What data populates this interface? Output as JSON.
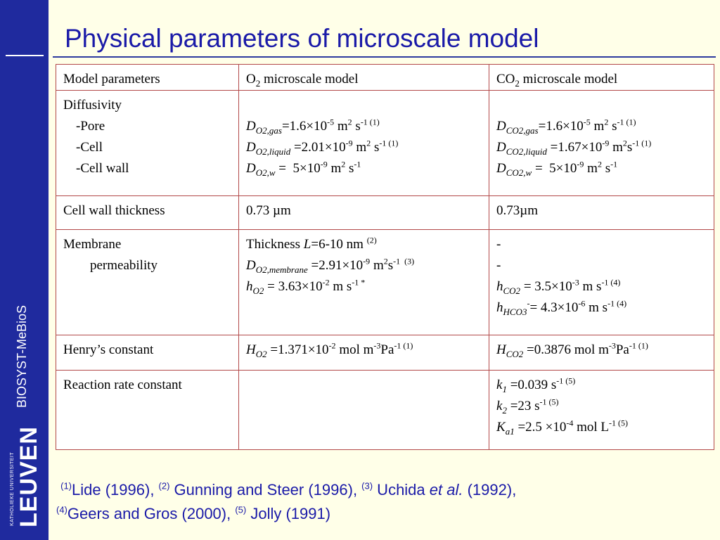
{
  "sidebar": {
    "brand": "BIOSYST-MeBioS",
    "university": "KATHOLIEKE UNIVERSITEIT",
    "logo": "LEUVEN"
  },
  "title": "Physical parameters of microscale model",
  "table": {
    "header": {
      "col1": "Model parameters",
      "col2_main": "O",
      "col2_sub": "2",
      "col2_rest": " microscale model",
      "col3_main": "CO",
      "col3_sub": "2",
      "col3_rest": " microscale model"
    },
    "rows": {
      "diffusivity": {
        "label": "Diffusivity",
        "pore": "-Pore",
        "cell": "-Cell",
        "cell_wall": "-Cell wall"
      },
      "cell_wall_thickness": {
        "label": "Cell wall thickness",
        "o2": "0.73 µm",
        "co2": "0.73µm"
      },
      "membrane": {
        "label_line1": "Membrane",
        "label_line2": "permeability",
        "co2_dash1": "-",
        "co2_dash2": "-"
      },
      "henry": {
        "label": "Henry’s constant"
      },
      "reaction": {
        "label": "Reaction rate constant"
      }
    }
  },
  "references": {
    "r1_num": "(1)",
    "r1": "Lide (1996), ",
    "r2_num": "(2)",
    "r2": " Gunning and Steer (1996), ",
    "r3_num": "(3)",
    "r3a": " Uchida ",
    "r3_etal": "et al.",
    "r3b": " (1992),",
    "r4_num": "(4)",
    "r4": "Geers and Gros (2000), ",
    "r5_num": "(5)",
    "r5": " Jolly (1991)"
  }
}
